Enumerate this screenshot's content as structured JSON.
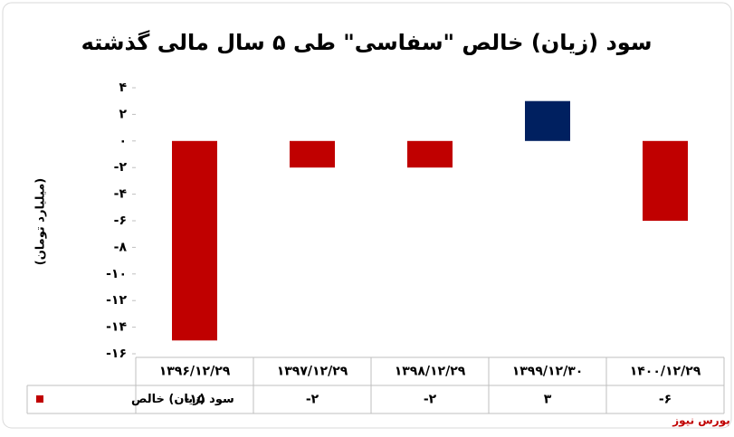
{
  "chart_data": {
    "type": "bar",
    "title": "سود (زیان) خالص \"سفاسی\" طی ۵ سال مالی گذشته",
    "y_label": "(میلیارد تومان)",
    "categories": [
      "۱۳۹۶/۱۲/۲۹",
      "۱۳۹۷/۱۲/۲۹",
      "۱۳۹۸/۱۲/۲۹",
      "۱۳۹۹/۱۲/۳۰",
      "۱۴۰۰/۱۲/۲۹"
    ],
    "series": [
      {
        "name": "سود (زیان) خالص",
        "color": "#c00000",
        "colors": [
          "#c00000",
          "#c00000",
          "#c00000",
          "#002060",
          "#c00000"
        ],
        "values": [
          -15,
          -2,
          -2,
          3,
          -6
        ],
        "value_labels": [
          "-۱۵",
          "-۲",
          "-۲",
          "۳",
          "-۶"
        ]
      }
    ],
    "ylim": [
      -16,
      4
    ],
    "yticks": [
      {
        "value": 4,
        "label": "۴"
      },
      {
        "value": 2,
        "label": "۲"
      },
      {
        "value": 0,
        "label": "۰"
      },
      {
        "value": -2,
        "label": "-۲"
      },
      {
        "value": -4,
        "label": "-۴"
      },
      {
        "value": -6,
        "label": "-۶"
      },
      {
        "value": -8,
        "label": "-۸"
      },
      {
        "value": -10,
        "label": "-۱۰"
      },
      {
        "value": -12,
        "label": "-۱۲"
      },
      {
        "value": -14,
        "label": "-۱۴"
      },
      {
        "value": -16,
        "label": "-۱۶"
      }
    ],
    "grid": false,
    "source": "بورس نیوز"
  }
}
